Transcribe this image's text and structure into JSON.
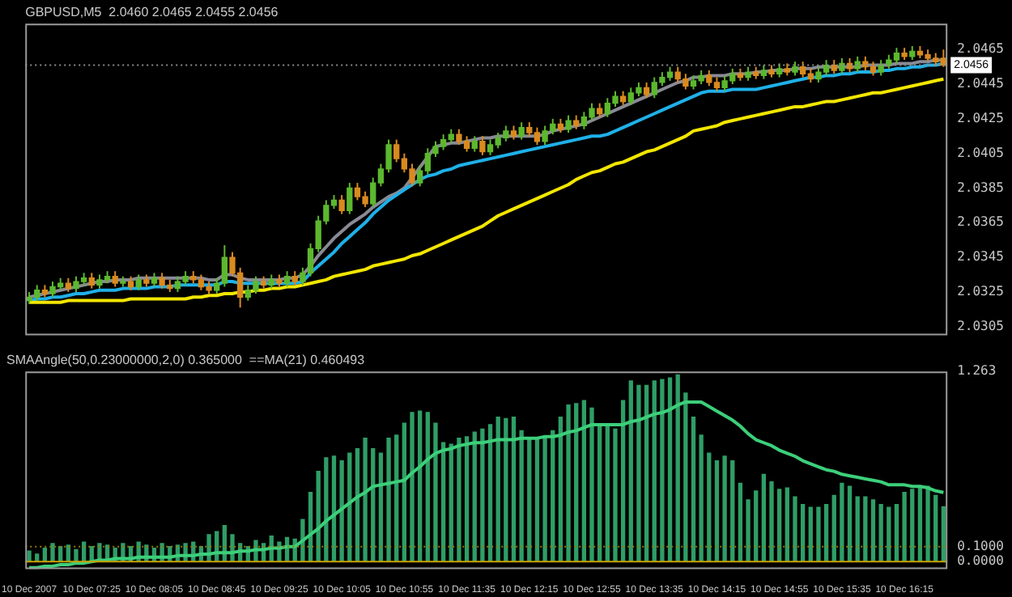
{
  "chart_data": [
    {
      "type": "candlestick",
      "title": "GBPUSD,M5  2.0460 2.0465 2.0455 2.0456",
      "categories": [
        null,
        null,
        null,
        null,
        null,
        null,
        null,
        null,
        null,
        null,
        null,
        null,
        null,
        null,
        null,
        null,
        null,
        null,
        null,
        null,
        null,
        null,
        null,
        null,
        null,
        null,
        null,
        null,
        null,
        null,
        null,
        null,
        null,
        null,
        null,
        null,
        null,
        null,
        null,
        null,
        null,
        null,
        null,
        null,
        null,
        null,
        null,
        null,
        null,
        null,
        null,
        null,
        null,
        null,
        null,
        null,
        null,
        null,
        null,
        null,
        null,
        null,
        null,
        null,
        null,
        null,
        null,
        null,
        null,
        null,
        null,
        null,
        null,
        null,
        null,
        null,
        null,
        null,
        null,
        null,
        null,
        null,
        null,
        null,
        null,
        null,
        null,
        null,
        null,
        null,
        null,
        null,
        null,
        null,
        null,
        null,
        null,
        null,
        null,
        null,
        null,
        null,
        null,
        null,
        null,
        null,
        null,
        null,
        null,
        null,
        null,
        null,
        null,
        null,
        null,
        null,
        null,
        null
      ],
      "tick_labels": "y",
      "series": [
        {
          "ohlc": [
            [
              2.032,
              2.0325,
              2.0318,
              2.0322
            ],
            [
              2.0322,
              2.0329,
              2.032,
              2.0326
            ],
            [
              2.0326,
              2.0329,
              2.0322,
              2.0324
            ],
            [
              2.0324,
              2.0331,
              2.0322,
              2.0328
            ],
            [
              2.0328,
              2.0333,
              2.0326,
              2.033
            ],
            [
              2.033,
              2.0333,
              2.0325,
              2.0327
            ],
            [
              2.0327,
              2.0334,
              2.0325,
              2.0331
            ],
            [
              2.0331,
              2.0336,
              2.0329,
              2.0333
            ],
            [
              2.0333,
              2.0336,
              2.0327,
              2.0329
            ],
            [
              2.0329,
              2.0335,
              2.0327,
              2.0332
            ],
            [
              2.0332,
              2.0337,
              2.033,
              2.0334
            ],
            [
              2.0334,
              2.0337,
              2.0328,
              2.033
            ],
            [
              2.033,
              2.0334,
              2.0328,
              2.0331
            ],
            [
              2.0331,
              2.0334,
              2.0326,
              2.0328
            ],
            [
              2.0328,
              2.0335,
              2.0326,
              2.0332
            ],
            [
              2.0332,
              2.0335,
              2.0328,
              2.033
            ],
            [
              2.033,
              2.0336,
              2.0328,
              2.0333
            ],
            [
              2.0333,
              2.0336,
              2.0327,
              2.0329
            ],
            [
              2.0329,
              2.0332,
              2.0325,
              2.0327
            ],
            [
              2.0327,
              2.0334,
              2.0325,
              2.0331
            ],
            [
              2.0331,
              2.0337,
              2.0329,
              2.0334
            ],
            [
              2.0334,
              2.0337,
              2.033,
              2.0332
            ],
            [
              2.0332,
              2.0335,
              2.0326,
              2.0328
            ],
            [
              2.0328,
              2.0331,
              2.0324,
              2.0326
            ],
            [
              2.0326,
              2.0333,
              2.0324,
              2.033
            ],
            [
              2.033,
              2.0352,
              2.0328,
              2.0345
            ],
            [
              2.0345,
              2.0348,
              2.0334,
              2.0336
            ],
            [
              2.0336,
              2.0339,
              2.0316,
              2.0322
            ],
            [
              2.0322,
              2.0329,
              2.032,
              2.0326
            ],
            [
              2.0326,
              2.0334,
              2.0324,
              2.0331
            ],
            [
              2.0331,
              2.0334,
              2.0327,
              2.0329
            ],
            [
              2.0329,
              2.0335,
              2.0327,
              2.0332
            ],
            [
              2.0332,
              2.0335,
              2.0328,
              2.033
            ],
            [
              2.033,
              2.0337,
              2.0328,
              2.0334
            ],
            [
              2.0334,
              2.0337,
              2.0329,
              2.0331
            ],
            [
              2.0331,
              2.0339,
              2.0329,
              2.0336
            ],
            [
              2.0336,
              2.0353,
              2.0334,
              2.035
            ],
            [
              2.035,
              2.0369,
              2.0348,
              2.0366
            ],
            [
              2.0366,
              2.0378,
              2.0364,
              2.0375
            ],
            [
              2.0375,
              2.0381,
              2.0373,
              2.0378
            ],
            [
              2.0378,
              2.0381,
              2.037,
              2.0372
            ],
            [
              2.0372,
              2.0388,
              2.037,
              2.0385
            ],
            [
              2.0385,
              2.0388,
              2.0378,
              2.038
            ],
            [
              2.038,
              2.0383,
              2.0374,
              2.0376
            ],
            [
              2.0376,
              2.0391,
              2.0374,
              2.0388
            ],
            [
              2.0388,
              2.0399,
              2.0386,
              2.0396
            ],
            [
              2.0396,
              2.0413,
              2.0394,
              2.041
            ],
            [
              2.041,
              2.0413,
              2.04,
              2.0402
            ],
            [
              2.0402,
              2.0405,
              2.0394,
              2.0396
            ],
            [
              2.0396,
              2.0399,
              2.0386,
              2.0388
            ],
            [
              2.0388,
              2.0398,
              2.0386,
              2.0395
            ],
            [
              2.0395,
              2.0408,
              2.0393,
              2.0405
            ],
            [
              2.0405,
              2.0412,
              2.0403,
              2.0409
            ],
            [
              2.0409,
              2.0416,
              2.0407,
              2.0413
            ],
            [
              2.0413,
              2.0419,
              2.0411,
              2.0416
            ],
            [
              2.0416,
              2.0419,
              2.041,
              2.0412
            ],
            [
              2.0412,
              2.0415,
              2.0406,
              2.0408
            ],
            [
              2.0408,
              2.0415,
              2.0406,
              2.0412
            ],
            [
              2.0412,
              2.0415,
              2.0404,
              2.0406
            ],
            [
              2.0406,
              2.0413,
              2.0404,
              2.041
            ],
            [
              2.041,
              2.0417,
              2.0408,
              2.0414
            ],
            [
              2.0414,
              2.0421,
              2.0412,
              2.0418
            ],
            [
              2.0418,
              2.0421,
              2.0413,
              2.0415
            ],
            [
              2.0415,
              2.0423,
              2.0413,
              2.042
            ],
            [
              2.042,
              2.0423,
              2.0415,
              2.0417
            ],
            [
              2.0417,
              2.042,
              2.041,
              2.0412
            ],
            [
              2.0412,
              2.0421,
              2.041,
              2.0418
            ],
            [
              2.0418,
              2.0425,
              2.0416,
              2.0422
            ],
            [
              2.0422,
              2.0425,
              2.0417,
              2.0419
            ],
            [
              2.0419,
              2.0427,
              2.0417,
              2.0424
            ],
            [
              2.0424,
              2.0427,
              2.0419,
              2.0421
            ],
            [
              2.0421,
              2.0429,
              2.0419,
              2.0426
            ],
            [
              2.0426,
              2.0434,
              2.0424,
              2.0431
            ],
            [
              2.0431,
              2.0434,
              2.0426,
              2.0428
            ],
            [
              2.0428,
              2.0437,
              2.0426,
              2.0434
            ],
            [
              2.0434,
              2.0441,
              2.0432,
              2.0438
            ],
            [
              2.0438,
              2.0441,
              2.0433,
              2.0435
            ],
            [
              2.0435,
              2.0443,
              2.0433,
              2.044
            ],
            [
              2.044,
              2.0446,
              2.0438,
              2.0443
            ],
            [
              2.0443,
              2.0446,
              2.0437,
              2.0439
            ],
            [
              2.0439,
              2.0449,
              2.0437,
              2.0446
            ],
            [
              2.0446,
              2.0452,
              2.0444,
              2.0449
            ],
            [
              2.0449,
              2.0455,
              2.0447,
              2.0452
            ],
            [
              2.0452,
              2.0455,
              2.0446,
              2.0448
            ],
            [
              2.0448,
              2.0451,
              2.0442,
              2.0444
            ],
            [
              2.0444,
              2.045,
              2.0442,
              2.0447
            ],
            [
              2.0447,
              2.0453,
              2.0445,
              2.045
            ],
            [
              2.045,
              2.0453,
              2.0444,
              2.0446
            ],
            [
              2.0446,
              2.0449,
              2.0441,
              2.0443
            ],
            [
              2.0443,
              2.045,
              2.0441,
              2.0447
            ],
            [
              2.0447,
              2.0454,
              2.0445,
              2.0451
            ],
            [
              2.0451,
              2.0454,
              2.0447,
              2.0449
            ],
            [
              2.0449,
              2.0455,
              2.0447,
              2.0452
            ],
            [
              2.0452,
              2.0455,
              2.0448,
              2.045
            ],
            [
              2.045,
              2.0456,
              2.0448,
              2.0453
            ],
            [
              2.0453,
              2.0456,
              2.0449,
              2.0451
            ],
            [
              2.0451,
              2.0457,
              2.0449,
              2.0454
            ],
            [
              2.0454,
              2.0457,
              2.045,
              2.0452
            ],
            [
              2.0452,
              2.0458,
              2.045,
              2.0455
            ],
            [
              2.0455,
              2.0458,
              2.0449,
              2.0451
            ],
            [
              2.0451,
              2.0454,
              2.0446,
              2.0448
            ],
            [
              2.0448,
              2.0455,
              2.0446,
              2.0452
            ],
            [
              2.0452,
              2.0459,
              2.045,
              2.0456
            ],
            [
              2.0456,
              2.0459,
              2.0451,
              2.0453
            ],
            [
              2.0453,
              2.046,
              2.0451,
              2.0457
            ],
            [
              2.0457,
              2.046,
              2.0452,
              2.0454
            ],
            [
              2.0454,
              2.0461,
              2.0452,
              2.0458
            ],
            [
              2.0458,
              2.0461,
              2.0453,
              2.0455
            ],
            [
              2.0455,
              2.0458,
              2.045,
              2.0452
            ],
            [
              2.0452,
              2.0459,
              2.045,
              2.0456
            ],
            [
              2.0456,
              2.0462,
              2.0454,
              2.0459
            ],
            [
              2.0459,
              2.0466,
              2.0457,
              2.0463
            ],
            [
              2.0463,
              2.0466,
              2.0459,
              2.0461
            ],
            [
              2.0461,
              2.0467,
              2.0459,
              2.0464
            ],
            [
              2.0464,
              2.0467,
              2.046,
              2.0462
            ],
            [
              2.0462,
              2.0465,
              2.0458,
              2.046
            ],
            [
              2.046,
              2.0463,
              2.0456,
              2.0458
            ],
            [
              2.046,
              2.0465,
              2.0455,
              2.0456
            ]
          ],
          "colors": [
            "#5cb82e",
            "#5cb82e",
            "#d98a1f",
            "#5cb82e",
            "#5cb82e",
            "#d98a1f",
            "#5cb82e",
            "#5cb82e",
            "#d98a1f",
            "#5cb82e",
            "#5cb82e",
            "#d98a1f",
            "#5cb82e",
            "#d98a1f",
            "#5cb82e",
            "#d98a1f",
            "#5cb82e",
            "#d98a1f",
            "#d98a1f",
            "#5cb82e",
            "#5cb82e",
            "#d98a1f",
            "#d98a1f",
            "#d98a1f",
            "#5cb82e",
            "#5cb82e",
            "#d98a1f",
            "#d98a1f",
            "#5cb82e",
            "#5cb82e",
            "#d98a1f",
            "#5cb82e",
            "#d98a1f",
            "#5cb82e",
            "#d98a1f",
            "#5cb82e",
            "#5cb82e",
            "#5cb82e",
            "#5cb82e",
            "#5cb82e",
            "#d98a1f",
            "#5cb82e",
            "#d98a1f",
            "#d98a1f",
            "#5cb82e",
            "#5cb82e",
            "#5cb82e",
            "#d98a1f",
            "#d98a1f",
            "#d98a1f",
            "#5cb82e",
            "#5cb82e",
            "#5cb82e",
            "#5cb82e",
            "#5cb82e",
            "#d98a1f",
            "#d98a1f",
            "#5cb82e",
            "#d98a1f",
            "#5cb82e",
            "#5cb82e",
            "#5cb82e",
            "#d98a1f",
            "#5cb82e",
            "#d98a1f",
            "#d98a1f",
            "#5cb82e",
            "#5cb82e",
            "#d98a1f",
            "#5cb82e",
            "#d98a1f",
            "#5cb82e",
            "#5cb82e",
            "#d98a1f",
            "#5cb82e",
            "#5cb82e",
            "#d98a1f",
            "#5cb82e",
            "#5cb82e",
            "#d98a1f",
            "#5cb82e",
            "#5cb82e",
            "#5cb82e",
            "#d98a1f",
            "#d98a1f",
            "#5cb82e",
            "#5cb82e",
            "#d98a1f",
            "#d98a1f",
            "#5cb82e",
            "#5cb82e",
            "#d98a1f",
            "#5cb82e",
            "#d98a1f",
            "#5cb82e",
            "#d98a1f",
            "#5cb82e",
            "#d98a1f",
            "#5cb82e",
            "#d98a1f",
            "#d98a1f",
            "#5cb82e",
            "#5cb82e",
            "#d98a1f",
            "#5cb82e",
            "#d98a1f",
            "#5cb82e",
            "#d98a1f",
            "#d98a1f",
            "#5cb82e",
            "#5cb82e",
            "#5cb82e",
            "#d98a1f",
            "#5cb82e",
            "#d98a1f",
            "#d98a1f",
            "#d98a1f",
            "#d98a1f"
          ]
        },
        {
          "type": "line",
          "color": "#f2e600",
          "values": [
            2.0319,
            2.0319,
            2.0319,
            2.0319,
            2.0319,
            2.032,
            2.032,
            2.032,
            2.032,
            2.032,
            2.032,
            2.032,
            2.032,
            2.0321,
            2.0321,
            2.0321,
            2.0321,
            2.0321,
            2.0321,
            2.0321,
            2.0321,
            2.0322,
            2.0322,
            2.0323,
            2.0323,
            2.0324,
            2.0324,
            2.0325,
            2.0325,
            2.0326,
            2.0326,
            2.0327,
            2.0327,
            2.0328,
            2.0328,
            2.0329,
            2.033,
            2.0331,
            2.0332,
            2.0334,
            2.0335,
            2.0336,
            2.0337,
            2.0338,
            2.034,
            2.0341,
            2.0342,
            2.0343,
            2.0344,
            2.0346,
            2.0347,
            2.0349,
            2.0351,
            2.0353,
            2.0355,
            2.0357,
            2.0359,
            2.0361,
            2.0363,
            2.0366,
            2.0369,
            2.0371,
            2.0373,
            2.0375,
            2.0377,
            2.0379,
            2.0381,
            2.0383,
            2.0385,
            2.0387,
            2.039,
            2.0392,
            2.0394,
            2.0395,
            2.0397,
            2.0399,
            2.04,
            2.0402,
            2.0404,
            2.0406,
            2.0407,
            2.0409,
            2.0411,
            2.0413,
            2.0415,
            2.0418,
            2.0419,
            2.042,
            2.0421,
            2.0423,
            2.0424,
            2.0425,
            2.0426,
            2.0427,
            2.0428,
            2.0429,
            2.043,
            2.0431,
            2.0432,
            2.0432,
            2.0433,
            2.0434,
            2.0435,
            2.0435,
            2.0436,
            2.0437,
            2.0438,
            2.0439,
            2.044,
            2.044,
            2.0441,
            2.0442,
            2.0443,
            2.0444,
            2.0445,
            2.0446,
            2.0447,
            2.0448
          ]
        },
        {
          "type": "line",
          "color": "#1fb0e8",
          "values": [
            2.032,
            2.0321,
            2.0321,
            2.0322,
            2.0322,
            2.0323,
            2.0324,
            2.0324,
            2.0325,
            2.0326,
            2.0326,
            2.0326,
            2.0327,
            2.0327,
            2.0327,
            2.0327,
            2.0328,
            2.0328,
            2.0328,
            2.0329,
            2.0329,
            2.0329,
            2.0329,
            2.0329,
            2.0329,
            2.0331,
            2.0331,
            2.033,
            2.033,
            2.033,
            2.033,
            2.033,
            2.033,
            2.033,
            2.033,
            2.0331,
            2.0336,
            2.034,
            2.0344,
            2.0348,
            2.0353,
            2.0357,
            2.0361,
            2.0365,
            2.037,
            2.0374,
            2.0378,
            2.0381,
            2.0384,
            2.0387,
            2.039,
            2.0392,
            2.0393,
            2.0395,
            2.0396,
            2.0398,
            2.0399,
            2.04,
            2.0401,
            2.0402,
            2.0403,
            2.0404,
            2.0405,
            2.0406,
            2.0407,
            2.0408,
            2.0409,
            2.041,
            2.0411,
            2.0412,
            2.0413,
            2.0414,
            2.0415,
            2.0415,
            2.0416,
            2.0418,
            2.042,
            2.0422,
            2.0424,
            2.0426,
            2.0428,
            2.043,
            2.0432,
            2.0434,
            2.0436,
            2.0438,
            2.044,
            2.0441,
            2.0441,
            2.0441,
            2.0442,
            2.0442,
            2.0442,
            2.0442,
            2.0443,
            2.0444,
            2.0445,
            2.0446,
            2.0447,
            2.0448,
            2.0449,
            2.0449,
            2.045,
            2.045,
            2.0451,
            2.0451,
            2.0452,
            2.0452,
            2.0452,
            2.0453,
            2.0453,
            2.0454,
            2.0454,
            2.0455,
            2.0455,
            2.0456,
            2.0456,
            2.0457
          ]
        },
        {
          "type": "line",
          "color": "#8a8a96",
          "values": [
            2.0322,
            2.0323,
            2.0324,
            2.0325,
            2.0326,
            2.0327,
            2.0328,
            2.0329,
            2.033,
            2.0331,
            2.0331,
            2.0332,
            2.0332,
            2.0332,
            2.0333,
            2.0333,
            2.0333,
            2.0333,
            2.0333,
            2.0333,
            2.0333,
            2.0333,
            2.0333,
            2.0332,
            2.0332,
            2.0335,
            2.0335,
            2.0333,
            2.0332,
            2.0332,
            2.0332,
            2.0332,
            2.0332,
            2.0333,
            2.0333,
            2.0335,
            2.034,
            2.0346,
            2.0351,
            2.0356,
            2.036,
            2.0364,
            2.0367,
            2.037,
            2.0374,
            2.0377,
            2.038,
            2.0382,
            2.0385,
            2.0391,
            2.0397,
            2.0403,
            2.0409,
            2.041,
            2.0411,
            2.0411,
            2.0412,
            2.0413,
            2.0414,
            2.0414,
            2.0415,
            2.0415,
            2.0415,
            2.0415,
            2.0415,
            2.0415,
            2.0416,
            2.0418,
            2.0419,
            2.042,
            2.0421,
            2.0422,
            2.0424,
            2.0426,
            2.0428,
            2.043,
            2.0432,
            2.0434,
            2.0436,
            2.0438,
            2.044,
            2.0442,
            2.0444,
            2.0446,
            2.0447,
            2.0449,
            2.0449,
            2.045,
            2.045,
            2.045,
            2.0451,
            2.0451,
            2.0451,
            2.0452,
            2.0452,
            2.0453,
            2.0453,
            2.0453,
            2.0454,
            2.0454,
            2.0454,
            2.0455,
            2.0455,
            2.0455,
            2.0455,
            2.0455,
            2.0455,
            2.0456,
            2.0456,
            2.0456,
            2.0456,
            2.0457,
            2.0457,
            2.0457,
            2.0458,
            2.0458,
            2.0459,
            2.0459
          ]
        }
      ],
      "ylim": [
        2.03,
        2.048
      ],
      "yticks": [
        2.0305,
        2.0325,
        2.0345,
        2.0365,
        2.0385,
        2.0405,
        2.0425,
        2.0445,
        2.0465
      ],
      "ref_lines": [
        {
          "axis": "y",
          "value": 2.0456,
          "label": "2.0456",
          "color": "#8c8c8c",
          "line_style": "dotted"
        }
      ]
    },
    {
      "type": "bar",
      "title": "SMAAngle(50,0.23000000,2,0) 0.365000  ==MA(21) 0.460493",
      "categories": [
        "10 Dec 2007",
        null,
        null,
        null,
        null,
        null,
        null,
        null,
        "10 Dec 07:25",
        null,
        null,
        null,
        null,
        null,
        null,
        null,
        "10 Dec 08:05",
        null,
        null,
        null,
        null,
        null,
        null,
        null,
        "10 Dec 08:45",
        null,
        null,
        null,
        null,
        null,
        null,
        null,
        "10 Dec 09:25",
        null,
        null,
        null,
        null,
        null,
        null,
        null,
        "10 Dec 10:05",
        null,
        null,
        null,
        null,
        null,
        null,
        null,
        "10 Dec 10:55",
        null,
        null,
        null,
        null,
        null,
        null,
        null,
        "10 Dec 11:35",
        null,
        null,
        null,
        null,
        null,
        null,
        null,
        "10 Dec 12:15",
        null,
        null,
        null,
        null,
        null,
        null,
        null,
        "10 Dec 12:55",
        null,
        null,
        null,
        null,
        null,
        null,
        null,
        "10 Dec 13:35",
        null,
        null,
        null,
        null,
        null,
        null,
        null,
        "10 Dec 14:15",
        null,
        null,
        null,
        null,
        null,
        null,
        null,
        "10 Dec 14:55",
        null,
        null,
        null,
        null,
        null,
        null,
        null,
        "10 Dec 15:35",
        null,
        null,
        null,
        null,
        null,
        null,
        null,
        "10 Dec 16:15",
        null,
        null,
        null,
        null,
        null
      ],
      "series": [
        {
          "color": "#2f9e66",
          "values": [
            0.07,
            0.05,
            0.09,
            0.12,
            0.1,
            0.11,
            0.08,
            0.13,
            0.1,
            0.12,
            0.11,
            0.09,
            0.12,
            0.1,
            0.13,
            0.11,
            0.09,
            0.12,
            0.1,
            0.11,
            0.12,
            0.13,
            0.1,
            0.18,
            0.2,
            0.24,
            0.18,
            0.12,
            0.1,
            0.14,
            0.12,
            0.17,
            0.13,
            0.16,
            0.15,
            0.28,
            0.46,
            0.6,
            0.69,
            0.7,
            0.67,
            0.72,
            0.75,
            0.82,
            0.75,
            0.72,
            0.82,
            0.84,
            0.92,
            0.99,
            1.0,
            0.99,
            0.92,
            0.79,
            0.78,
            0.82,
            0.83,
            0.86,
            0.88,
            0.91,
            0.96,
            0.95,
            0.96,
            0.87,
            0.81,
            0.81,
            0.82,
            0.87,
            0.96,
            1.04,
            1.05,
            1.07,
            1.02,
            0.91,
            0.91,
            0.88,
            1.07,
            1.2,
            1.17,
            1.17,
            1.2,
            1.21,
            1.22,
            1.24,
            1.12,
            0.96,
            0.84,
            0.72,
            0.67,
            0.7,
            0.67,
            0.52,
            0.41,
            0.47,
            0.58,
            0.53,
            0.48,
            0.49,
            0.43,
            0.38,
            0.36,
            0.36,
            0.38,
            0.44,
            0.52,
            0.5,
            0.43,
            0.43,
            0.41,
            0.38,
            0.36,
            0.38,
            0.46,
            0.48,
            0.5,
            0.5,
            0.44,
            0.365
          ]
        },
        {
          "type": "line",
          "color": "#3ccf7a",
          "values": [
            -0.04,
            -0.04,
            -0.03,
            -0.03,
            -0.02,
            -0.02,
            -0.01,
            -0.01,
            0,
            0.01,
            0.01,
            0.02,
            0.02,
            0.02,
            0.03,
            0.03,
            0.03,
            0.03,
            0.03,
            0.04,
            0.04,
            0.04,
            0.05,
            0.05,
            0.06,
            0.06,
            0.06,
            0.07,
            0.07,
            0.08,
            0.08,
            0.09,
            0.09,
            0.1,
            0.1,
            0.14,
            0.18,
            0.22,
            0.27,
            0.31,
            0.35,
            0.39,
            0.43,
            0.46,
            0.5,
            0.51,
            0.52,
            0.53,
            0.54,
            0.59,
            0.63,
            0.68,
            0.72,
            0.74,
            0.75,
            0.77,
            0.78,
            0.79,
            0.79,
            0.8,
            0.81,
            0.81,
            0.81,
            0.82,
            0.82,
            0.82,
            0.83,
            0.83,
            0.84,
            0.86,
            0.87,
            0.89,
            0.91,
            0.91,
            0.91,
            0.91,
            0.91,
            0.93,
            0.94,
            0.96,
            0.98,
            0.99,
            1.01,
            1.04,
            1.06,
            1.06,
            1.06,
            1.03,
            1.0,
            0.97,
            0.94,
            0.9,
            0.85,
            0.81,
            0.79,
            0.77,
            0.74,
            0.72,
            0.7,
            0.67,
            0.65,
            0.63,
            0.61,
            0.6,
            0.58,
            0.57,
            0.56,
            0.55,
            0.54,
            0.53,
            0.51,
            0.51,
            0.51,
            0.5,
            0.5,
            0.49,
            0.47,
            0.46
          ]
        }
      ],
      "ylim": [
        -0.05,
        1.263
      ],
      "yticks": [
        1.263,
        {
          "value": 0.1,
          "label": "0.1000"
        },
        {
          "value": 0,
          "label": "0.0000"
        }
      ],
      "ref_lines": [
        {
          "axis": "y",
          "value": 0.1,
          "color": "#9a7a00",
          "line_style": "dotted"
        },
        {
          "axis": "y",
          "value": 0,
          "color": "#c9a200"
        }
      ]
    }
  ]
}
